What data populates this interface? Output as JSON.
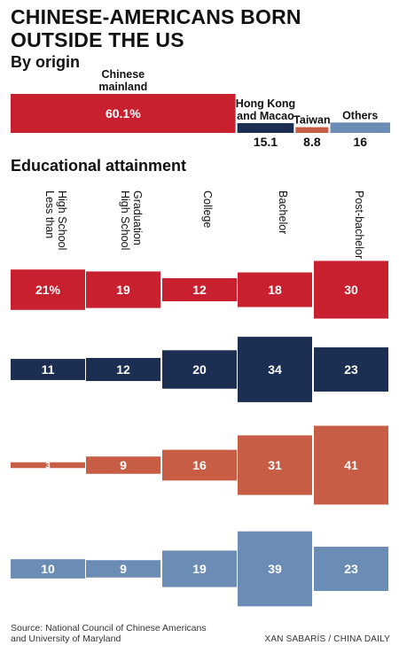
{
  "header": {
    "title": "CHINESE-AMERICANS BORN OUTSIDE THE US",
    "subtitle": "By origin",
    "section2": "Educational attainment"
  },
  "footer": {
    "source": "Source: National Council of Chinese Americans and University of Maryland",
    "credit": "XAN SABARÍS / CHINA DAILY"
  },
  "colors": {
    "Chinese mainland": "#c8202f",
    "Hong Kong and Macao": "#1c2f52",
    "Taiwan": "#c85d45",
    "Others": "#6b8cb5"
  },
  "chart_data": [
    {
      "type": "bar",
      "title": "By origin",
      "categories": [
        "Chinese mainland",
        "Hong Kong and Macao",
        "Taiwan",
        "Others"
      ],
      "values": [
        60.1,
        15.1,
        8.8,
        16
      ],
      "value_labels": [
        "60.1%",
        "15.1",
        "8.8",
        "16"
      ],
      "category_labels": [
        [
          "Chinese",
          "mainland"
        ],
        [
          "Hong Kong",
          "and Macao"
        ],
        [
          "Taiwan"
        ],
        [
          "Others"
        ]
      ]
    },
    {
      "type": "bar",
      "title": "Educational attainment",
      "categories": [
        "Less than High School",
        "High School Graduation",
        "College",
        "Bachelor",
        "Post-bachelor"
      ],
      "category_labels": [
        [
          "Less than",
          "High School"
        ],
        [
          "High School",
          "Graduation"
        ],
        [
          "College"
        ],
        [
          "Bachelor"
        ],
        [
          "Post-bachelor"
        ]
      ],
      "series": [
        {
          "name": "Chinese mainland",
          "values": [
            21,
            19,
            12,
            18,
            30
          ],
          "labels": [
            "21%",
            "19",
            "12",
            "18",
            "30"
          ]
        },
        {
          "name": "Hong Kong and Macao",
          "values": [
            11,
            12,
            20,
            34,
            23
          ],
          "labels": [
            "11",
            "12",
            "20",
            "34",
            "23"
          ]
        },
        {
          "name": "Taiwan",
          "values": [
            3,
            9,
            16,
            31,
            41
          ],
          "labels": [
            "3",
            "9",
            "16",
            "31",
            "41"
          ]
        },
        {
          "name": "Others",
          "values": [
            10,
            9,
            19,
            39,
            23
          ],
          "labels": [
            "10",
            "9",
            "19",
            "39",
            "23"
          ]
        }
      ]
    }
  ]
}
